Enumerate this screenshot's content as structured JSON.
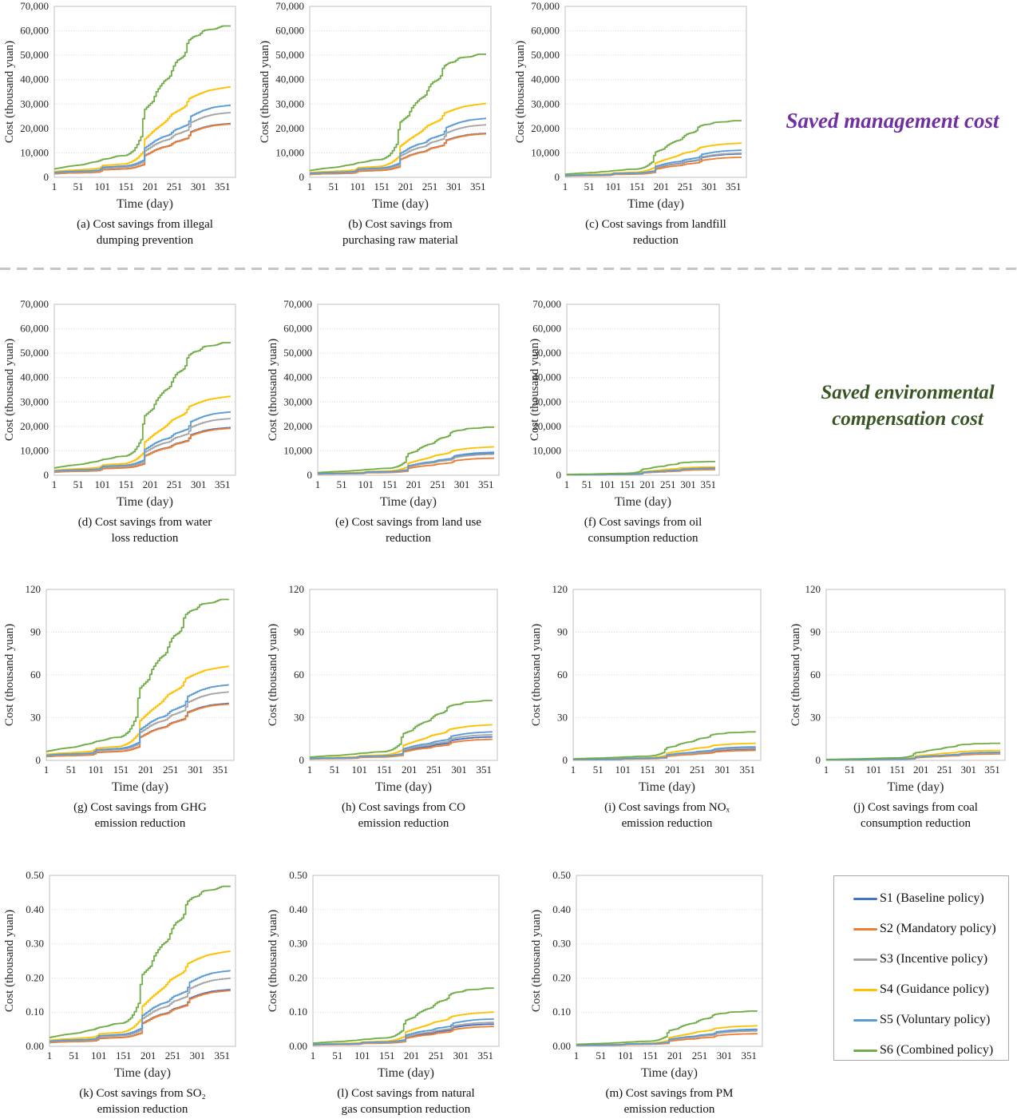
{
  "figure": {
    "section_labels": {
      "management": {
        "text": "Saved management cost",
        "color": "#7030A0"
      },
      "environmental": {
        "lines": [
          "Saved environmental",
          "compensation cost"
        ],
        "color": "#375623"
      }
    },
    "legend": {
      "items": [
        {
          "key": "S1",
          "label": "S1 (Baseline policy)",
          "color": "#4472C4"
        },
        {
          "key": "S2",
          "label": "S2 (Mandatory policy)",
          "color": "#ED7D31"
        },
        {
          "key": "S3",
          "label": "S3 (Incentive policy)",
          "color": "#A5A5A5"
        },
        {
          "key": "S4",
          "label": "S4 (Guidance policy)",
          "color": "#FFC000"
        },
        {
          "key": "S5",
          "label": "S5 (Voluntary policy)",
          "color": "#5B9BD5"
        },
        {
          "key": "S6",
          "label": "S6 (Combined policy)",
          "color": "#70AD47"
        }
      ]
    }
  },
  "series_profiles": {
    "default": {
      "x": [
        1,
        25,
        50,
        75,
        95,
        100,
        125,
        150,
        160,
        170,
        180,
        187,
        189,
        200,
        210,
        225,
        240,
        251,
        260,
        270,
        278,
        285,
        300,
        310,
        320,
        330,
        340,
        351,
        365
      ],
      "f": [
        0.068,
        0.08,
        0.085,
        0.09,
        0.1,
        0.14,
        0.15,
        0.16,
        0.17,
        0.19,
        0.22,
        0.24,
        0.41,
        0.46,
        0.51,
        0.56,
        0.59,
        0.66,
        0.68,
        0.71,
        0.73,
        0.85,
        0.9,
        0.93,
        0.95,
        0.97,
        0.98,
        0.99,
        1.0
      ]
    },
    "s4": {
      "x": [
        1,
        25,
        50,
        75,
        95,
        100,
        125,
        150,
        160,
        170,
        178,
        185,
        188,
        198,
        208,
        220,
        232,
        245,
        255,
        265,
        272,
        280,
        288,
        300,
        310,
        320,
        330,
        340,
        351,
        365
      ],
      "f": [
        0.065,
        0.075,
        0.082,
        0.09,
        0.1,
        0.13,
        0.14,
        0.15,
        0.17,
        0.2,
        0.24,
        0.28,
        0.42,
        0.47,
        0.52,
        0.57,
        0.62,
        0.7,
        0.73,
        0.76,
        0.78,
        0.87,
        0.89,
        0.92,
        0.94,
        0.96,
        0.97,
        0.98,
        0.99,
        1.0
      ]
    },
    "s6": {
      "x": [
        1,
        30,
        60,
        75,
        90,
        100,
        115,
        130,
        150,
        157,
        165,
        172,
        178,
        183,
        186,
        195,
        205,
        212,
        220,
        230,
        240,
        248,
        255,
        265,
        272,
        278,
        290,
        302,
        310,
        320,
        335,
        350,
        365
      ],
      "f": [
        0.056,
        0.073,
        0.084,
        0.097,
        0.105,
        0.118,
        0.125,
        0.14,
        0.145,
        0.157,
        0.177,
        0.21,
        0.25,
        0.28,
        0.44,
        0.47,
        0.5,
        0.56,
        0.6,
        0.64,
        0.66,
        0.73,
        0.77,
        0.79,
        0.81,
        0.9,
        0.93,
        0.94,
        0.97,
        0.975,
        0.98,
        1.0,
        1.0
      ]
    }
  },
  "chart_data": [
    {
      "id": "a",
      "type": "line",
      "caption_lines": [
        "(a) Cost savings from illegal",
        "dumping prevention"
      ],
      "xlabel": "Time (day)",
      "ylabel": "Cost (thousand yuan)",
      "xticks": [
        1,
        51,
        101,
        151,
        201,
        251,
        301,
        351
      ],
      "xlim": [
        1,
        378
      ],
      "ylim": [
        0,
        70000
      ],
      "ytick_labels": [
        "0",
        "10,000",
        "20,000",
        "30,000",
        "40,000",
        "50,000",
        "60,000",
        "70,000"
      ],
      "series": [
        {
          "key": "S1",
          "profile": "default",
          "final": 22000
        },
        {
          "key": "S2",
          "profile": "default",
          "final": 21800
        },
        {
          "key": "S3",
          "profile": "default",
          "final": 26500
        },
        {
          "key": "S4",
          "profile": "s4",
          "final": 37000
        },
        {
          "key": "S5",
          "profile": "default",
          "final": 29500
        },
        {
          "key": "S6",
          "profile": "s6",
          "final": 62000
        }
      ]
    },
    {
      "id": "b",
      "type": "line",
      "caption_lines": [
        "(b) Cost savings from",
        "purchasing raw material"
      ],
      "xlabel": "Time (day)",
      "ylabel": "Cost (thousand yuan)",
      "xticks": [
        1,
        51,
        101,
        151,
        201,
        251,
        301,
        351
      ],
      "xlim": [
        1,
        378
      ],
      "ylim": [
        0,
        70000
      ],
      "ytick_labels": [
        "0",
        "10,000",
        "20,000",
        "30,000",
        "40,000",
        "50,000",
        "60,000",
        "70,000"
      ],
      "series": [
        {
          "key": "S1",
          "profile": "default",
          "final": 18000
        },
        {
          "key": "S2",
          "profile": "default",
          "final": 17800
        },
        {
          "key": "S3",
          "profile": "default",
          "final": 21500
        },
        {
          "key": "S4",
          "profile": "s4",
          "final": 30200
        },
        {
          "key": "S5",
          "profile": "default",
          "final": 24100
        },
        {
          "key": "S6",
          "profile": "s6",
          "final": 50400
        }
      ]
    },
    {
      "id": "c",
      "type": "line",
      "caption_lines": [
        "(c) Cost savings from landfill",
        "reduction"
      ],
      "xlabel": "Time (day)",
      "ylabel": "Cost (thousand yuan)",
      "xticks": [
        1,
        51,
        101,
        151,
        201,
        251,
        301,
        351
      ],
      "xlim": [
        1,
        378
      ],
      "ylim": [
        0,
        70000
      ],
      "ytick_labels": [
        "0",
        "10,000",
        "20,000",
        "30,000",
        "40,000",
        "50,000",
        "60,000",
        "70,000"
      ],
      "series": [
        {
          "key": "S1",
          "profile": "default",
          "final": 9600
        },
        {
          "key": "S2",
          "profile": "default",
          "final": 8200
        },
        {
          "key": "S3",
          "profile": "default",
          "final": 9900
        },
        {
          "key": "S4",
          "profile": "s4",
          "final": 14000
        },
        {
          "key": "S5",
          "profile": "default",
          "final": 11100
        },
        {
          "key": "S6",
          "profile": "s6",
          "final": 23200
        }
      ]
    },
    {
      "id": "d",
      "type": "line",
      "caption_lines": [
        "(d) Cost savings from water",
        "loss reduction"
      ],
      "xlabel": "Time (day)",
      "ylabel": "Cost (thousand yuan)",
      "xticks": [
        1,
        51,
        101,
        151,
        201,
        251,
        301,
        351
      ],
      "xlim": [
        1,
        378
      ],
      "ylim": [
        0,
        70000
      ],
      "ytick_labels": [
        "0",
        "10,000",
        "20,000",
        "30,000",
        "40,000",
        "50,000",
        "60,000",
        "70,000"
      ],
      "series": [
        {
          "key": "S1",
          "profile": "default",
          "final": 19500
        },
        {
          "key": "S2",
          "profile": "default",
          "final": 19200
        },
        {
          "key": "S3",
          "profile": "default",
          "final": 23200
        },
        {
          "key": "S4",
          "profile": "s4",
          "final": 32300
        },
        {
          "key": "S5",
          "profile": "default",
          "final": 25900
        },
        {
          "key": "S6",
          "profile": "s6",
          "final": 54300
        }
      ]
    },
    {
      "id": "e",
      "type": "line",
      "caption_lines": [
        "(e) Cost savings from land use",
        "reduction"
      ],
      "xlabel": "Time (day)",
      "ylabel": "Cost (thousand yuan)",
      "xticks": [
        1,
        51,
        101,
        151,
        201,
        251,
        301,
        351
      ],
      "xlim": [
        1,
        378
      ],
      "ylim": [
        0,
        70000
      ],
      "ytick_labels": [
        "0",
        "10,000",
        "20,000",
        "30,000",
        "40,000",
        "50,000",
        "60,000",
        "70,000"
      ],
      "series": [
        {
          "key": "S1",
          "profile": "default",
          "final": 8900
        },
        {
          "key": "S2",
          "profile": "default",
          "final": 7000
        },
        {
          "key": "S3",
          "profile": "default",
          "final": 8600
        },
        {
          "key": "S4",
          "profile": "s4",
          "final": 11600
        },
        {
          "key": "S5",
          "profile": "default",
          "final": 9400
        },
        {
          "key": "S6",
          "profile": "s6",
          "final": 19700
        }
      ]
    },
    {
      "id": "f",
      "type": "line",
      "caption_lines": [
        "(f) Cost savings from oil",
        "consumption reduction"
      ],
      "xlabel": "Time (day)",
      "ylabel": "Cost (thousand yuan)",
      "xticks": [
        1,
        51,
        101,
        151,
        201,
        251,
        301,
        351
      ],
      "xlim": [
        1,
        378
      ],
      "ylim": [
        0,
        70000
      ],
      "ytick_labels": [
        "0",
        "10,000",
        "20,000",
        "30,000",
        "40,000",
        "50,000",
        "60,000",
        "70,000"
      ],
      "series": [
        {
          "key": "S1",
          "profile": "default",
          "final": 2600
        },
        {
          "key": "S2",
          "profile": "default",
          "final": 2300
        },
        {
          "key": "S3",
          "profile": "default",
          "final": 2700
        },
        {
          "key": "S4",
          "profile": "s4",
          "final": 3400
        },
        {
          "key": "S5",
          "profile": "default",
          "final": 2900
        },
        {
          "key": "S6",
          "profile": "s6",
          "final": 5600
        }
      ]
    },
    {
      "id": "g",
      "type": "line",
      "caption_lines": [
        "(g) Cost savings from GHG",
        "emission reduction"
      ],
      "xlabel": "Time (day)",
      "ylabel": "Cost (thousand yuan)",
      "xticks": [
        1,
        51,
        101,
        151,
        201,
        251,
        301,
        351
      ],
      "xlim": [
        1,
        378
      ],
      "ylim": [
        0,
        120
      ],
      "ytick_labels": [
        "0",
        "30",
        "60",
        "90",
        "120"
      ],
      "series": [
        {
          "key": "S1",
          "profile": "default",
          "final": 40
        },
        {
          "key": "S2",
          "profile": "default",
          "final": 39.5
        },
        {
          "key": "S3",
          "profile": "default",
          "final": 48
        },
        {
          "key": "S4",
          "profile": "s4",
          "final": 66
        },
        {
          "key": "S5",
          "profile": "default",
          "final": 53
        },
        {
          "key": "S6",
          "profile": "s6",
          "final": 113
        }
      ]
    },
    {
      "id": "h",
      "type": "line",
      "caption_lines": [
        "(h) Cost savings from CO",
        "emission reduction"
      ],
      "xlabel": "Time (day)",
      "ylabel": "Cost (thousand yuan)",
      "xticks": [
        1,
        51,
        101,
        151,
        201,
        251,
        301,
        351
      ],
      "xlim": [
        1,
        378
      ],
      "ylim": [
        0,
        120
      ],
      "ytick_labels": [
        "0",
        "30",
        "60",
        "90",
        "120"
      ],
      "series": [
        {
          "key": "S1",
          "profile": "default",
          "final": 16.5
        },
        {
          "key": "S2",
          "profile": "default",
          "final": 14.8
        },
        {
          "key": "S3",
          "profile": "default",
          "final": 18
        },
        {
          "key": "S4",
          "profile": "s4",
          "final": 25
        },
        {
          "key": "S5",
          "profile": "default",
          "final": 20
        },
        {
          "key": "S6",
          "profile": "s6",
          "final": 42
        }
      ]
    },
    {
      "id": "i",
      "type": "line",
      "caption_lines": [
        "(i) Cost savings from NOₓ",
        "emission reduction"
      ],
      "xlabel": "Time (day)",
      "ylabel": "Cost (thousand yuan)",
      "xticks": [
        1,
        51,
        101,
        151,
        201,
        251,
        301,
        351
      ],
      "xlim": [
        1,
        378
      ],
      "ylim": [
        0,
        120
      ],
      "ytick_labels": [
        "0",
        "30",
        "60",
        "90",
        "120"
      ],
      "series": [
        {
          "key": "S1",
          "profile": "default",
          "final": 8
        },
        {
          "key": "S2",
          "profile": "default",
          "final": 7
        },
        {
          "key": "S3",
          "profile": "default",
          "final": 8.5
        },
        {
          "key": "S4",
          "profile": "s4",
          "final": 12
        },
        {
          "key": "S5",
          "profile": "default",
          "final": 9.5
        },
        {
          "key": "S6",
          "profile": "s6",
          "final": 20
        }
      ]
    },
    {
      "id": "j",
      "type": "line",
      "caption_lines": [
        "(j) Cost savings from coal",
        "consumption reduction"
      ],
      "xlabel": "Time (day)",
      "ylabel": "Cost (thousand yuan)",
      "xticks": [
        1,
        51,
        101,
        151,
        201,
        251,
        301,
        351
      ],
      "xlim": [
        1,
        378
      ],
      "ylim": [
        0,
        120
      ],
      "ytick_labels": [
        "0",
        "30",
        "60",
        "90",
        "120"
      ],
      "series": [
        {
          "key": "S1",
          "profile": "default",
          "final": 5
        },
        {
          "key": "S2",
          "profile": "default",
          "final": 4.5
        },
        {
          "key": "S3",
          "profile": "default",
          "final": 5.2
        },
        {
          "key": "S4",
          "profile": "s4",
          "final": 7
        },
        {
          "key": "S5",
          "profile": "default",
          "final": 5.7
        },
        {
          "key": "S6",
          "profile": "s6",
          "final": 12
        }
      ]
    },
    {
      "id": "k",
      "type": "line",
      "caption_lines": [
        "(k) Cost savings from SO₂",
        "emission reduction"
      ],
      "xlabel": "Time (day)",
      "ylabel": "Cost (thousand yuan)",
      "xticks": [
        1,
        51,
        101,
        151,
        201,
        251,
        301,
        351
      ],
      "xlim": [
        1,
        378
      ],
      "ylim": [
        0,
        0.5
      ],
      "ytick_labels": [
        "0.00",
        "0.10",
        "0.20",
        "0.30",
        "0.40",
        "0.50"
      ],
      "series": [
        {
          "key": "S1",
          "profile": "default",
          "final": 0.166
        },
        {
          "key": "S2",
          "profile": "default",
          "final": 0.163
        },
        {
          "key": "S3",
          "profile": "default",
          "final": 0.199
        },
        {
          "key": "S4",
          "profile": "s4",
          "final": 0.278
        },
        {
          "key": "S5",
          "profile": "default",
          "final": 0.221
        },
        {
          "key": "S6",
          "profile": "s6",
          "final": 0.468
        }
      ]
    },
    {
      "id": "l",
      "type": "line",
      "caption_lines": [
        "(l) Cost savings from natural",
        "gas consumption reduction"
      ],
      "xlabel": "Time (day)",
      "ylabel": "Cost (thousand yuan)",
      "xticks": [
        1,
        51,
        101,
        151,
        201,
        251,
        301,
        351
      ],
      "xlim": [
        1,
        378
      ],
      "ylim": [
        0,
        0.5
      ],
      "ytick_labels": [
        "0.00",
        "0.10",
        "0.20",
        "0.30",
        "0.40",
        "0.50"
      ],
      "series": [
        {
          "key": "S1",
          "profile": "default",
          "final": 0.065
        },
        {
          "key": "S2",
          "profile": "default",
          "final": 0.058
        },
        {
          "key": "S3",
          "profile": "default",
          "final": 0.07
        },
        {
          "key": "S4",
          "profile": "s4",
          "final": 0.1
        },
        {
          "key": "S5",
          "profile": "default",
          "final": 0.08
        },
        {
          "key": "S6",
          "profile": "s6",
          "final": 0.17
        }
      ]
    },
    {
      "id": "m",
      "type": "line",
      "caption_lines": [
        "(m) Cost savings from PM",
        "emission reduction"
      ],
      "xlabel": "Time (day)",
      "ylabel": "Cost (thousand yuan)",
      "xticks": [
        1,
        51,
        101,
        151,
        201,
        251,
        301,
        351
      ],
      "xlim": [
        1,
        378
      ],
      "ylim": [
        0,
        0.5
      ],
      "ytick_labels": [
        "0.00",
        "0.10",
        "0.20",
        "0.30",
        "0.40",
        "0.50"
      ],
      "series": [
        {
          "key": "S1",
          "profile": "default",
          "final": 0.048
        },
        {
          "key": "S2",
          "profile": "default",
          "final": 0.037
        },
        {
          "key": "S3",
          "profile": "default",
          "final": 0.045
        },
        {
          "key": "S4",
          "profile": "s4",
          "final": 0.06
        },
        {
          "key": "S5",
          "profile": "default",
          "final": 0.05
        },
        {
          "key": "S6",
          "profile": "s6",
          "final": 0.103
        }
      ]
    }
  ]
}
